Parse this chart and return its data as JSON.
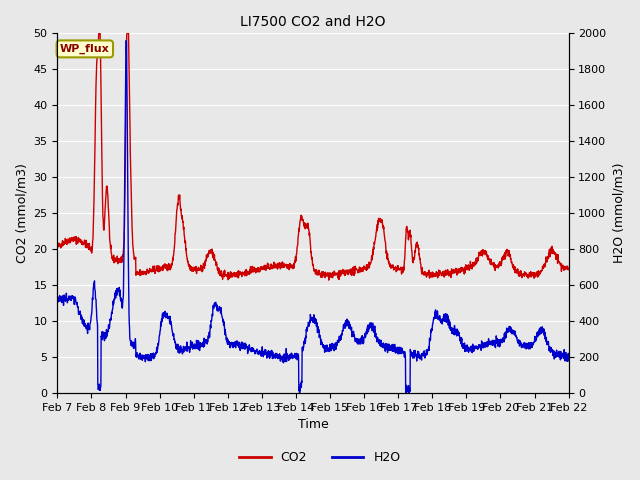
{
  "title": "LI7500 CO2 and H2O",
  "xlabel": "Time",
  "ylabel_left": "CO2 (mmol/m3)",
  "ylabel_right": "H2O (mmol/m3)",
  "ylim_left": [
    0,
    50
  ],
  "ylim_right": [
    0,
    2000
  ],
  "yticks_left": [
    0,
    5,
    10,
    15,
    20,
    25,
    30,
    35,
    40,
    45,
    50
  ],
  "yticks_right": [
    0,
    200,
    400,
    600,
    800,
    1000,
    1200,
    1400,
    1600,
    1800,
    2000
  ],
  "xtick_labels": [
    "Feb 7",
    "Feb 8",
    "Feb 9",
    "Feb 10",
    "Feb 11",
    "Feb 12",
    "Feb 13",
    "Feb 14",
    "Feb 15",
    "Feb 16",
    "Feb 17",
    "Feb 18",
    "Feb 19",
    "Feb 20",
    "Feb 21",
    "Feb 22"
  ],
  "co2_color": "#cc0000",
  "h2o_color": "#0000cc",
  "bg_color": "#e8e8e8",
  "plot_bg_color": "#e8e8e8",
  "grid_color": "#ffffff",
  "legend_label_co2": "CO2",
  "legend_label_h2o": "H2O",
  "annotation_text": "WP_flux",
  "linewidth": 1.0,
  "title_fontsize": 10,
  "axis_fontsize": 9,
  "tick_fontsize": 8
}
